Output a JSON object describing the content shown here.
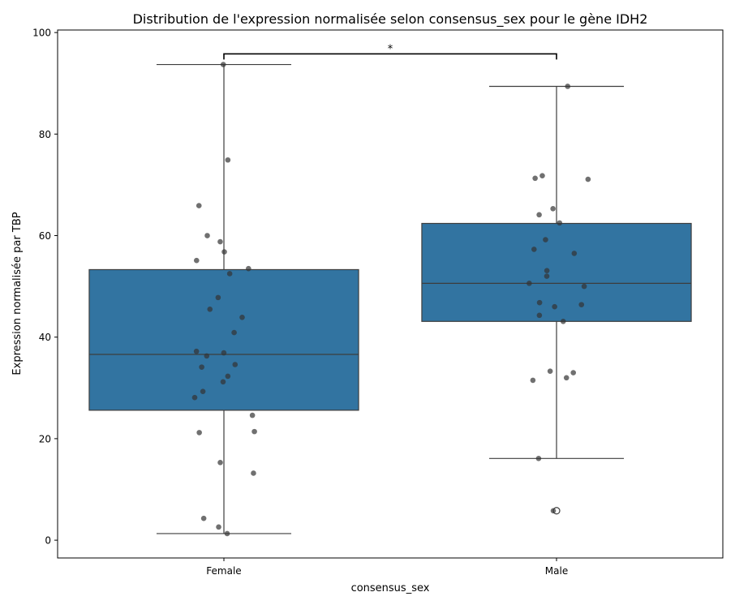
{
  "chart_data": {
    "type": "box",
    "title": "Distribution de l'expression normalisée selon consensus_sex pour le gène IDH2",
    "xlabel": "consensus_sex",
    "ylabel": "Expression normalisée par TBP",
    "categories": [
      "Female",
      "Male"
    ],
    "ylim": [
      -3.5,
      100.5
    ],
    "yticks": [
      0,
      20,
      40,
      60,
      80,
      100
    ],
    "grid": false,
    "colors": {
      "box": "#3274a1",
      "line": "#3d3d3d",
      "point": "#333333"
    },
    "boxes": [
      {
        "category": "Female",
        "q1": 25.6,
        "median": 36.6,
        "q3": 53.3,
        "whisker_low": 1.3,
        "whisker_high": 93.7,
        "outliers": []
      },
      {
        "category": "Male",
        "q1": 43.1,
        "median": 50.6,
        "q3": 62.4,
        "whisker_low": 16.1,
        "whisker_high": 89.4,
        "outliers": [
          5.8
        ]
      }
    ],
    "points": [
      {
        "category": "Female",
        "values": [
          93.7,
          74.9,
          65.9,
          60.0,
          58.8,
          56.8,
          55.1,
          53.5,
          52.5,
          47.8,
          45.5,
          43.9,
          40.9,
          37.2,
          36.9,
          36.3,
          34.6,
          34.1,
          32.3,
          31.2,
          29.3,
          28.1,
          24.6,
          21.4,
          21.2,
          15.3,
          13.2,
          4.3,
          2.6,
          1.3
        ]
      },
      {
        "category": "Male",
        "values": [
          89.4,
          71.8,
          71.3,
          71.1,
          65.3,
          64.1,
          62.5,
          59.2,
          57.3,
          56.5,
          53.1,
          52.0,
          50.6,
          50.0,
          46.8,
          46.4,
          46.0,
          44.3,
          43.1,
          33.3,
          33.0,
          32.0,
          31.5,
          16.1,
          5.8
        ]
      }
    ],
    "annotation": {
      "text": "*",
      "y": 95.8
    }
  }
}
